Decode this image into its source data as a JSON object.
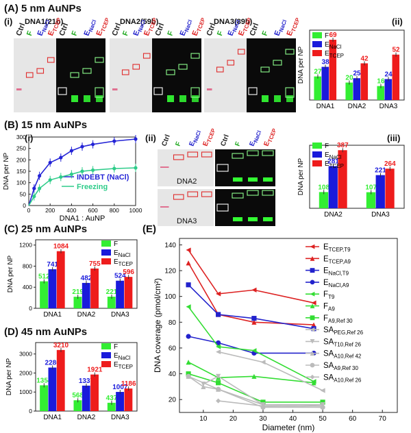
{
  "panels": {
    "A": {
      "label": "(A) 5 nm AuNPs",
      "sub_i": "(i)",
      "sub_ii": "(ii)",
      "gel_groups": [
        "DNA1(21b)",
        "DNA2(59b)",
        "DNA3(89b)"
      ],
      "lanes": [
        "Ctrl",
        "F",
        "E",
        "E"
      ],
      "lane_subs": [
        "",
        "",
        "NaCl",
        "TCEP"
      ]
    },
    "B": {
      "label": "(B) 15 nm AuNPs",
      "sub_i": "(i)",
      "sub_ii": "(ii)",
      "sub_iii": "(iii)",
      "gel_names": [
        "DNA2",
        "DNA3"
      ]
    },
    "C": {
      "label": "(C) 25 nm AuNPs"
    },
    "D": {
      "label": "(D) 45 nm AuNPs"
    },
    "E": {
      "label": "(E)"
    }
  },
  "colors": {
    "F": "#33ee33",
    "ENaCl": "#1a1adb",
    "ETCEP": "#ee1c1c",
    "indebt": "#2323d6",
    "freezing": "#2ecc8a"
  },
  "chart_data": [
    {
      "id": "A-ii",
      "type": "bar",
      "ylabel": "DNA per NP",
      "categories": [
        "DNA1",
        "DNA2",
        "DNA3"
      ],
      "ylim": [
        0,
        80
      ],
      "series": [
        {
          "name": "F",
          "values": [
            27,
            20,
            16
          ]
        },
        {
          "name": "E_NaCl",
          "values": [
            38,
            25,
            24
          ]
        },
        {
          "name": "E_TCEP",
          "values": [
            69,
            42,
            52
          ]
        }
      ]
    },
    {
      "id": "B-i",
      "type": "line",
      "xlabel": "DNA1 : AuNP",
      "ylabel": "DNA per NP",
      "xlim": [
        0,
        1000
      ],
      "ylim": [
        0,
        300
      ],
      "xticks": [
        0,
        200,
        400,
        600,
        800,
        1000
      ],
      "yticks": [
        0,
        50,
        100,
        150,
        200,
        250,
        300
      ],
      "series": [
        {
          "name": "INDEBT (NaCl)",
          "x": [
            50,
            100,
            200,
            300,
            400,
            500,
            600,
            800,
            1000
          ],
          "y": [
            75,
            130,
            188,
            210,
            240,
            258,
            268,
            282,
            291
          ]
        },
        {
          "name": "Freezing",
          "x": [
            50,
            100,
            200,
            300,
            400,
            500,
            600,
            800,
            1000
          ],
          "y": [
            40,
            75,
            112,
            125,
            137,
            150,
            155,
            162,
            165
          ]
        }
      ]
    },
    {
      "id": "B-iii",
      "type": "bar",
      "ylabel": "DNA per NP",
      "categories": [
        "DNA2",
        "DNA3"
      ],
      "ylim": [
        0,
        420
      ],
      "series": [
        {
          "name": "F",
          "values": [
            108,
            107
          ]
        },
        {
          "name": "E_NaCl",
          "values": [
            281,
            221
          ]
        },
        {
          "name": "E_TCEP",
          "values": [
            387,
            264
          ]
        }
      ]
    },
    {
      "id": "C",
      "type": "bar",
      "ylabel": "DNA per NP",
      "categories": [
        "DNA1",
        "DNA2",
        "DNA3"
      ],
      "ylim": [
        0,
        1300
      ],
      "yticks": [
        0,
        400,
        800,
        1200
      ],
      "series": [
        {
          "name": "F",
          "values": [
            512,
            219,
            221
          ]
        },
        {
          "name": "E_NaCl",
          "values": [
            741,
            482,
            524
          ]
        },
        {
          "name": "E_TCEP",
          "values": [
            1084,
            755,
            596
          ]
        }
      ]
    },
    {
      "id": "D",
      "type": "bar",
      "ylabel": "DNA per NP",
      "categories": [
        "DNA1",
        "DNA2",
        "DNA3"
      ],
      "ylim": [
        0,
        3600
      ],
      "yticks": [
        0,
        1000,
        2000,
        3000
      ],
      "series": [
        {
          "name": "F",
          "values": [
            1354,
            568,
            437
          ]
        },
        {
          "name": "E_NaCl",
          "values": [
            2286,
            1337,
            1007
          ]
        },
        {
          "name": "E_TCEP",
          "values": [
            3210,
            1921,
            1186
          ]
        }
      ]
    },
    {
      "id": "E",
      "type": "line",
      "xlabel": "Diameter (nm)",
      "ylabel": "DNA coverage (pmol/cm²)",
      "xlim": [
        2,
        75
      ],
      "ylim": [
        10,
        145
      ],
      "xticks": [
        10,
        20,
        30,
        40,
        50,
        60,
        70
      ],
      "yticks": [
        20,
        40,
        60,
        80,
        100,
        120,
        140
      ],
      "series": [
        {
          "name": "E_TCEP,T9",
          "x": [
            5,
            15,
            27,
            47
          ],
          "y": [
            136,
            102,
            105,
            95
          ]
        },
        {
          "name": "E_TCEP,A9",
          "x": [
            5,
            15,
            27,
            47
          ],
          "y": [
            126,
            86,
            80,
            78
          ]
        },
        {
          "name": "E_NaCl,T9",
          "x": [
            5,
            15,
            27,
            47
          ],
          "y": [
            109,
            86,
            83,
            75
          ]
        },
        {
          "name": "E_NaCl,A9",
          "x": [
            5,
            15,
            27,
            47
          ],
          "y": [
            69,
            64,
            56,
            56
          ]
        },
        {
          "name": "F_T9",
          "x": [
            5,
            15,
            27,
            47
          ],
          "y": [
            92,
            61,
            58,
            34
          ]
        },
        {
          "name": "F_A9",
          "x": [
            5,
            15,
            27,
            47
          ],
          "y": [
            49,
            37,
            38,
            33
          ]
        },
        {
          "name": "F_A9,Ref 30",
          "x": [
            5,
            15,
            30,
            50
          ],
          "y": [
            40,
            33,
            18,
            18
          ]
        },
        {
          "name": "SA_PEG,Ref 26",
          "x": [
            15,
            30,
            50
          ],
          "y": [
            57,
            49,
            27
          ]
        },
        {
          "name": "SA_T10,Ref 26",
          "x": [
            10,
            15,
            30,
            50
          ],
          "y": [
            32,
            38,
            16,
            16
          ]
        },
        {
          "name": "SA_A10,Ref 42",
          "x": [
            5,
            10,
            15,
            30,
            50
          ],
          "y": [
            38,
            30,
            28,
            16,
            15
          ]
        },
        {
          "name": "SA_A9,Ref 30",
          "x": [
            5,
            15,
            30,
            50
          ],
          "y": [
            38,
            28,
            14,
            14
          ]
        },
        {
          "name": "SA_A10,Ref 26",
          "x": [
            15,
            30,
            50
          ],
          "y": [
            19,
            15,
            14
          ]
        }
      ]
    }
  ],
  "legends": {
    "bars": [
      {
        "key": "F",
        "label": "F",
        "sub": ""
      },
      {
        "key": "ENaCl",
        "label": "E",
        "sub": "NaCl"
      },
      {
        "key": "ETCEP",
        "label": "E",
        "sub": "TCEP"
      }
    ],
    "E": [
      {
        "label": "E",
        "sub": "TCEP,T9",
        "color": "#dd2222",
        "marker": "tri-left"
      },
      {
        "label": "E",
        "sub": "TCEP,A9",
        "color": "#dd2222",
        "marker": "tri-up"
      },
      {
        "label": "E",
        "sub": "NaCl,T9",
        "color": "#2222cc",
        "marker": "square"
      },
      {
        "label": "E",
        "sub": "NaCl,A9",
        "color": "#2222cc",
        "marker": "circle"
      },
      {
        "label": "F",
        "sub": "T9",
        "color": "#33dd33",
        "marker": "tri-left"
      },
      {
        "label": "F",
        "sub": "A9",
        "color": "#33dd33",
        "marker": "tri-up"
      },
      {
        "label": "F",
        "sub": "A9,Ref 30",
        "color": "#33dd33",
        "marker": "square"
      },
      {
        "label": "SA",
        "sub": "PEG,Ref 26",
        "color": "#bbbbbb",
        "marker": "tri-left"
      },
      {
        "label": "SA",
        "sub": "T10,Ref 26",
        "color": "#bbbbbb",
        "marker": "tri-down"
      },
      {
        "label": "SA",
        "sub": "A10,Ref 42",
        "color": "#bbbbbb",
        "marker": "tri-up"
      },
      {
        "label": "SA",
        "sub": "A9,Ref 30",
        "color": "#bbbbbb",
        "marker": "circle"
      },
      {
        "label": "SA",
        "sub": "A10,Ref 26",
        "color": "#bbbbbb",
        "marker": "diamond"
      }
    ]
  }
}
